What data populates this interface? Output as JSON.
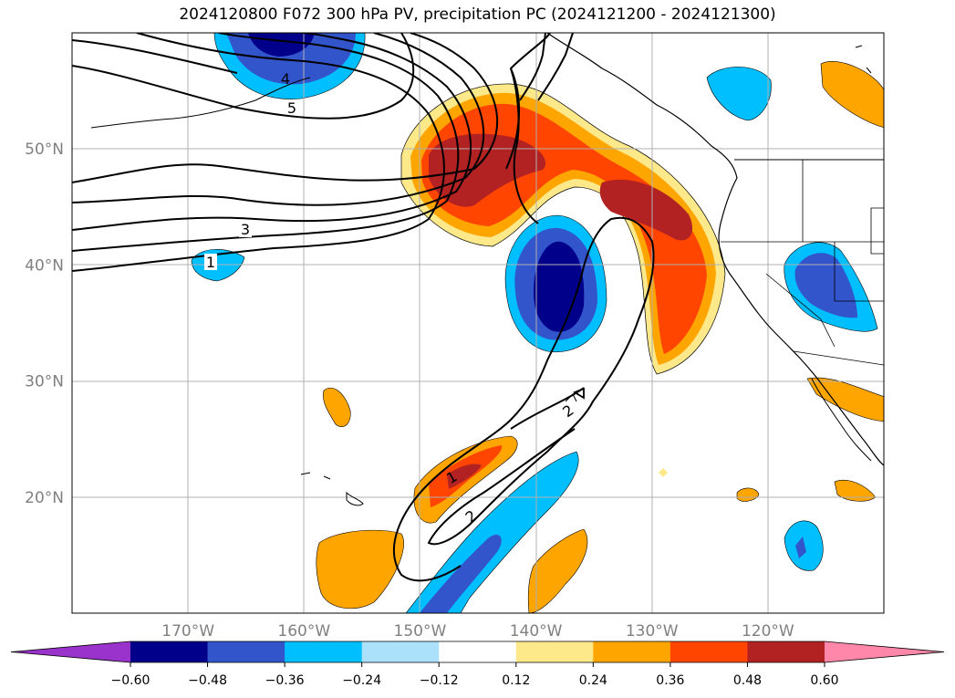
{
  "title": "2024120800 F072 300 hPa PV, precipitation PC (2024121200 - 2024121300)",
  "lon_ticks": [
    {
      "label": "170°W",
      "lon": -170
    },
    {
      "label": "160°W",
      "lon": -160
    },
    {
      "label": "150°W",
      "lon": -150
    },
    {
      "label": "140°W",
      "lon": -140
    },
    {
      "label": "130°W",
      "lon": -130
    },
    {
      "label": "120°W",
      "lon": -120
    }
  ],
  "lat_ticks": [
    {
      "label": "50°N",
      "lat": 50
    },
    {
      "label": "40°N",
      "lat": 40
    },
    {
      "label": "30°N",
      "lat": 30
    },
    {
      "label": "20°N",
      "lat": 20
    }
  ],
  "map_extent": {
    "lon_min": -180,
    "lon_max": -110,
    "lat_min": 10,
    "lat_max": 60
  },
  "pv_contour_labels": [
    "1",
    "3",
    "4",
    "5",
    "1",
    "2",
    "2"
  ],
  "colorbar": {
    "colors": [
      "#9933cc",
      "#00008b",
      "#3355cc",
      "#00bfff",
      "#abe1fa",
      "#ffffff",
      "#fde98a",
      "#ffa500",
      "#ff4500",
      "#b22222",
      "#ff88aa"
    ],
    "tick_labels": [
      "−0.60",
      "−0.48",
      "−0.36",
      "−0.24",
      "−0.12",
      "0.12",
      "0.24",
      "0.36",
      "0.48",
      "0.60"
    ]
  }
}
